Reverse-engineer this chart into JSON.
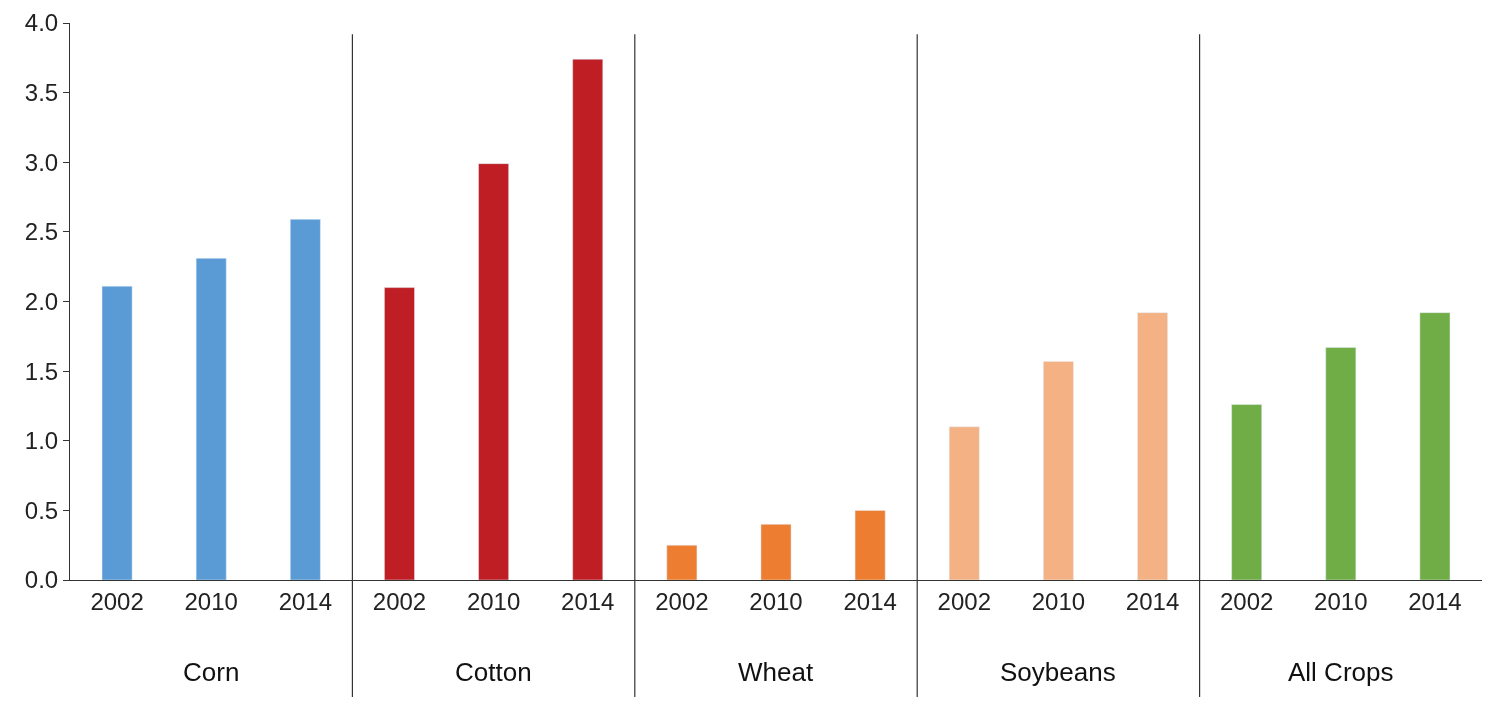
{
  "chart_data": {
    "type": "bar",
    "categories": [
      "2002",
      "2010",
      "2014",
      "2002",
      "2010",
      "2014",
      "2002",
      "2010",
      "2014",
      "2002",
      "2010",
      "2014",
      "2002",
      "2010",
      "2014"
    ],
    "series": [
      {
        "color": "#5b9bd5",
        "values": [
          2.11,
          2.31,
          2.59,
          null,
          null,
          null,
          null,
          null,
          null,
          null,
          null,
          null,
          null,
          null,
          null
        ]
      },
      {
        "color": "#be1e24",
        "values": [
          null,
          null,
          null,
          2.1,
          2.99,
          3.74,
          null,
          null,
          null,
          null,
          null,
          null,
          null,
          null,
          null
        ]
      },
      {
        "color": "#ed7d31",
        "values": [
          null,
          null,
          null,
          null,
          null,
          null,
          0.25,
          0.4,
          0.5,
          null,
          null,
          null,
          null,
          null,
          null
        ]
      },
      {
        "color": "#f4b183",
        "values": [
          null,
          null,
          null,
          null,
          null,
          null,
          null,
          null,
          null,
          1.1,
          1.57,
          1.92,
          null,
          null,
          null
        ]
      },
      {
        "color": "#70ad47",
        "values": [
          null,
          null,
          null,
          null,
          null,
          null,
          null,
          null,
          null,
          null,
          null,
          null,
          1.26,
          1.67,
          1.92
        ]
      }
    ],
    "annotations": [
      "Corn",
      "Cotton",
      "Wheat",
      "Soybeans",
      "All Crops"
    ],
    "ylim": [
      0,
      4
    ],
    "yticks": [
      {
        "value": 0,
        "label": "0.0"
      },
      {
        "value": 0.5,
        "label": "0.5"
      },
      {
        "value": 1,
        "label": "1.0"
      },
      {
        "value": 1.5,
        "label": "1.5"
      },
      {
        "value": 2,
        "label": "2.0"
      },
      {
        "value": 2.5,
        "label": "2.5"
      },
      {
        "value": 3,
        "label": "3.0"
      },
      {
        "value": 3.5,
        "label": "3.5"
      },
      {
        "value": 4,
        "label": "4.0"
      }
    ]
  }
}
